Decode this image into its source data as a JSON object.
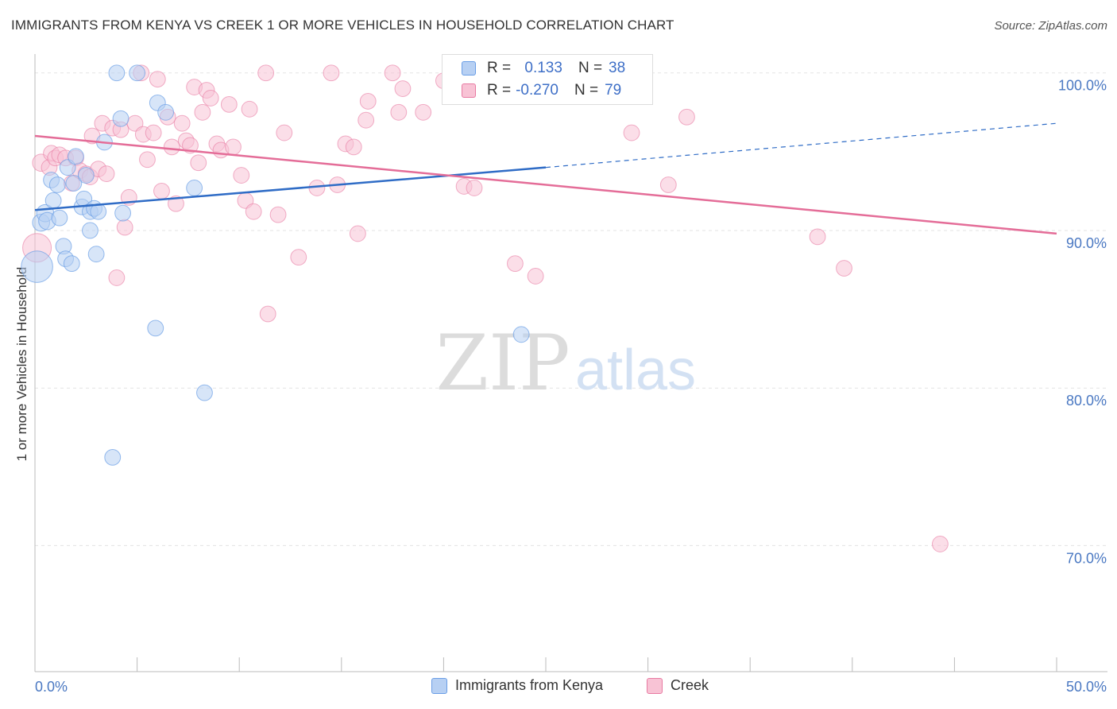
{
  "header": {
    "title": "IMMIGRANTS FROM KENYA VS CREEK 1 OR MORE VEHICLES IN HOUSEHOLD CORRELATION CHART",
    "source": "Source: ZipAtlas.com"
  },
  "watermark": {
    "zip": "ZIP",
    "atlas": "atlas"
  },
  "legend": {
    "rows": [
      {
        "r_label": "R =",
        "r_value": " 0.133",
        "n_label": "N =",
        "n_value": "38"
      },
      {
        "r_label": "R =",
        "r_value": "-0.270",
        "n_label": "N =",
        "n_value": "79"
      }
    ]
  },
  "chart_data": {
    "type": "scatter",
    "ylabel": "1 or more Vehicles in Household",
    "xlim": [
      0,
      50
    ],
    "ylim": [
      62,
      101.5
    ],
    "x_tick_labels": [
      "0.0%",
      "50.0%"
    ],
    "y_ticks": [
      {
        "value": 100,
        "label": "100.0%"
      },
      {
        "value": 90,
        "label": "90.0%"
      },
      {
        "value": 80,
        "label": "80.0%"
      },
      {
        "value": 70,
        "label": "70.0%"
      }
    ],
    "grid": true,
    "colors": {
      "kenya": "#6a9ee6",
      "kenya_fill": "#b7d0f3",
      "creek": "#e87aa2",
      "creek_fill": "#f8c3d5",
      "kenya_line": "#2f6cc6",
      "creek_line": "#e46d98"
    },
    "series": [
      {
        "name": "Immigrants from Kenya",
        "r": 0.133,
        "n": 38,
        "trend": {
          "x0": 0,
          "y0": 91.3,
          "x1": 25,
          "y1": 94.0,
          "dash_to_x": 50,
          "dash_to_y": 96.8
        },
        "points": [
          [
            0.1,
            87.7,
            22
          ],
          [
            0.3,
            90.5,
            12
          ],
          [
            0.5,
            91.1,
            12
          ],
          [
            0.6,
            90.6,
            12
          ],
          [
            0.8,
            93.2,
            11
          ],
          [
            0.9,
            91.9,
            11
          ],
          [
            1.1,
            92.9,
            11
          ],
          [
            1.2,
            90.8,
            11
          ],
          [
            1.4,
            89.0,
            11
          ],
          [
            1.5,
            88.2,
            11
          ],
          [
            1.6,
            94.0,
            11
          ],
          [
            1.8,
            87.9,
            11
          ],
          [
            1.9,
            93.0,
            11
          ],
          [
            2.0,
            94.7,
            11
          ],
          [
            2.3,
            91.5,
            11
          ],
          [
            2.4,
            92.0,
            11
          ],
          [
            2.5,
            93.5,
            11
          ],
          [
            2.7,
            91.2,
            11
          ],
          [
            2.7,
            90.0,
            11
          ],
          [
            2.9,
            91.4,
            11
          ],
          [
            3.0,
            88.5,
            11
          ],
          [
            3.1,
            91.2,
            11
          ],
          [
            3.4,
            95.6,
            11
          ],
          [
            3.8,
            75.6,
            11
          ],
          [
            4.0,
            100.0,
            11
          ],
          [
            4.2,
            97.1,
            11
          ],
          [
            4.3,
            91.1,
            11
          ],
          [
            5.0,
            100.0,
            11
          ],
          [
            5.9,
            83.8,
            11
          ],
          [
            6.0,
            98.1,
            11
          ],
          [
            6.4,
            97.5,
            11
          ],
          [
            7.8,
            92.7,
            11
          ],
          [
            8.3,
            79.7,
            11
          ],
          [
            23.2,
            100.0,
            11
          ],
          [
            24.2,
            100.0,
            11
          ],
          [
            23.8,
            83.4,
            11
          ]
        ]
      },
      {
        "name": "Creek",
        "r": -0.27,
        "n": 79,
        "trend": {
          "x0": 0,
          "y0": 96.0,
          "x1": 50,
          "y1": 89.8
        },
        "points": [
          [
            0.1,
            88.9,
            20
          ],
          [
            0.3,
            94.3,
            12
          ],
          [
            0.7,
            94.0,
            11
          ],
          [
            0.8,
            94.9,
            11
          ],
          [
            1.0,
            94.6,
            11
          ],
          [
            1.2,
            94.8,
            11
          ],
          [
            1.5,
            94.6,
            11
          ],
          [
            1.8,
            93.0,
            11
          ],
          [
            2.0,
            94.6,
            11
          ],
          [
            2.2,
            93.8,
            11
          ],
          [
            2.5,
            93.6,
            11
          ],
          [
            2.7,
            93.4,
            11
          ],
          [
            2.8,
            96.0,
            11
          ],
          [
            3.1,
            93.9,
            11
          ],
          [
            3.3,
            96.8,
            11
          ],
          [
            3.5,
            93.6,
            11
          ],
          [
            3.8,
            96.5,
            11
          ],
          [
            4.0,
            87.0,
            11
          ],
          [
            4.2,
            96.4,
            11
          ],
          [
            4.4,
            90.2,
            11
          ],
          [
            4.6,
            92.1,
            11
          ],
          [
            4.9,
            96.8,
            11
          ],
          [
            5.2,
            100.0,
            11
          ],
          [
            5.3,
            96.1,
            11
          ],
          [
            5.5,
            94.5,
            11
          ],
          [
            5.8,
            96.2,
            11
          ],
          [
            6.0,
            99.6,
            11
          ],
          [
            6.2,
            92.5,
            11
          ],
          [
            6.5,
            97.2,
            11
          ],
          [
            6.7,
            95.3,
            11
          ],
          [
            6.9,
            91.7,
            11
          ],
          [
            7.2,
            96.8,
            11
          ],
          [
            7.4,
            95.7,
            11
          ],
          [
            7.6,
            95.4,
            11
          ],
          [
            7.8,
            99.1,
            11
          ],
          [
            8.0,
            94.3,
            11
          ],
          [
            8.2,
            97.5,
            11
          ],
          [
            8.4,
            98.9,
            11
          ],
          [
            8.6,
            98.4,
            11
          ],
          [
            8.9,
            95.5,
            11
          ],
          [
            9.1,
            95.1,
            11
          ],
          [
            9.5,
            98.0,
            11
          ],
          [
            9.7,
            95.3,
            11
          ],
          [
            10.1,
            93.5,
            11
          ],
          [
            10.3,
            91.9,
            11
          ],
          [
            10.5,
            97.7,
            11
          ],
          [
            10.7,
            91.2,
            11
          ],
          [
            11.3,
            100.0,
            11
          ],
          [
            11.4,
            84.7,
            11
          ],
          [
            11.9,
            91.0,
            11
          ],
          [
            12.2,
            96.2,
            11
          ],
          [
            12.9,
            88.3,
            11
          ],
          [
            13.8,
            92.7,
            11
          ],
          [
            14.5,
            100.0,
            11
          ],
          [
            14.8,
            92.9,
            11
          ],
          [
            15.2,
            95.5,
            11
          ],
          [
            15.6,
            95.3,
            11
          ],
          [
            15.8,
            89.8,
            11
          ],
          [
            16.2,
            97.0,
            11
          ],
          [
            16.3,
            98.2,
            11
          ],
          [
            17.5,
            100.0,
            11
          ],
          [
            17.8,
            97.5,
            11
          ],
          [
            18.0,
            99.0,
            11
          ],
          [
            19.0,
            97.5,
            11
          ],
          [
            20.0,
            99.5,
            11
          ],
          [
            21.0,
            92.8,
            11
          ],
          [
            21.5,
            92.7,
            11
          ],
          [
            22.8,
            99.2,
            11
          ],
          [
            23.5,
            87.9,
            11
          ],
          [
            24.5,
            87.1,
            11
          ],
          [
            25.2,
            100.0,
            11
          ],
          [
            25.6,
            98.8,
            11
          ],
          [
            29.2,
            96.2,
            11
          ],
          [
            31.0,
            92.9,
            11
          ],
          [
            31.9,
            97.2,
            11
          ],
          [
            38.3,
            89.6,
            11
          ],
          [
            39.6,
            87.6,
            11
          ],
          [
            44.3,
            70.1,
            11
          ],
          [
            25.0,
            99.5,
            11
          ]
        ]
      }
    ]
  }
}
